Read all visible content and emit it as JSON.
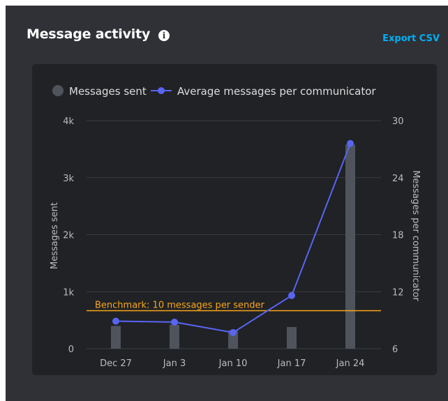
{
  "header": {
    "title": "Message activity",
    "info_icon": "info-icon",
    "export_label": "Export CSV"
  },
  "colors": {
    "panel_bg": "#2f3136",
    "card_bg": "#202225",
    "bar": "#4f545c",
    "line": "#5865f2",
    "benchmark": "#faa61a",
    "link": "#00aff4"
  },
  "chart_data": {
    "type": "bar",
    "categories": [
      "Dec 27",
      "Jan 3",
      "Jan 10",
      "Jan 17",
      "Jan 24"
    ],
    "series": [
      {
        "name": "Messages sent",
        "type": "bar",
        "axis": "left",
        "values": [
          400,
          420,
          320,
          380,
          3580
        ]
      },
      {
        "name": "Average messages per communicator",
        "type": "line",
        "axis": "right",
        "values": [
          8.9,
          8.8,
          7.7,
          11.6,
          27.6
        ]
      }
    ],
    "ylabel": "Messages sent",
    "ylabel_right": "Messages per communicator",
    "ylim": [
      0,
      4000
    ],
    "ylim_right": [
      6,
      30
    ],
    "yticks": [
      "0",
      "1k",
      "2k",
      "3k",
      "4k"
    ],
    "yticks_right": [
      "6",
      "12",
      "18",
      "24",
      "30"
    ],
    "benchmark": {
      "label": "Benchmark: 10 messages per sender",
      "value": 10,
      "axis": "right"
    },
    "legend_position": "top-left",
    "grid": true
  }
}
